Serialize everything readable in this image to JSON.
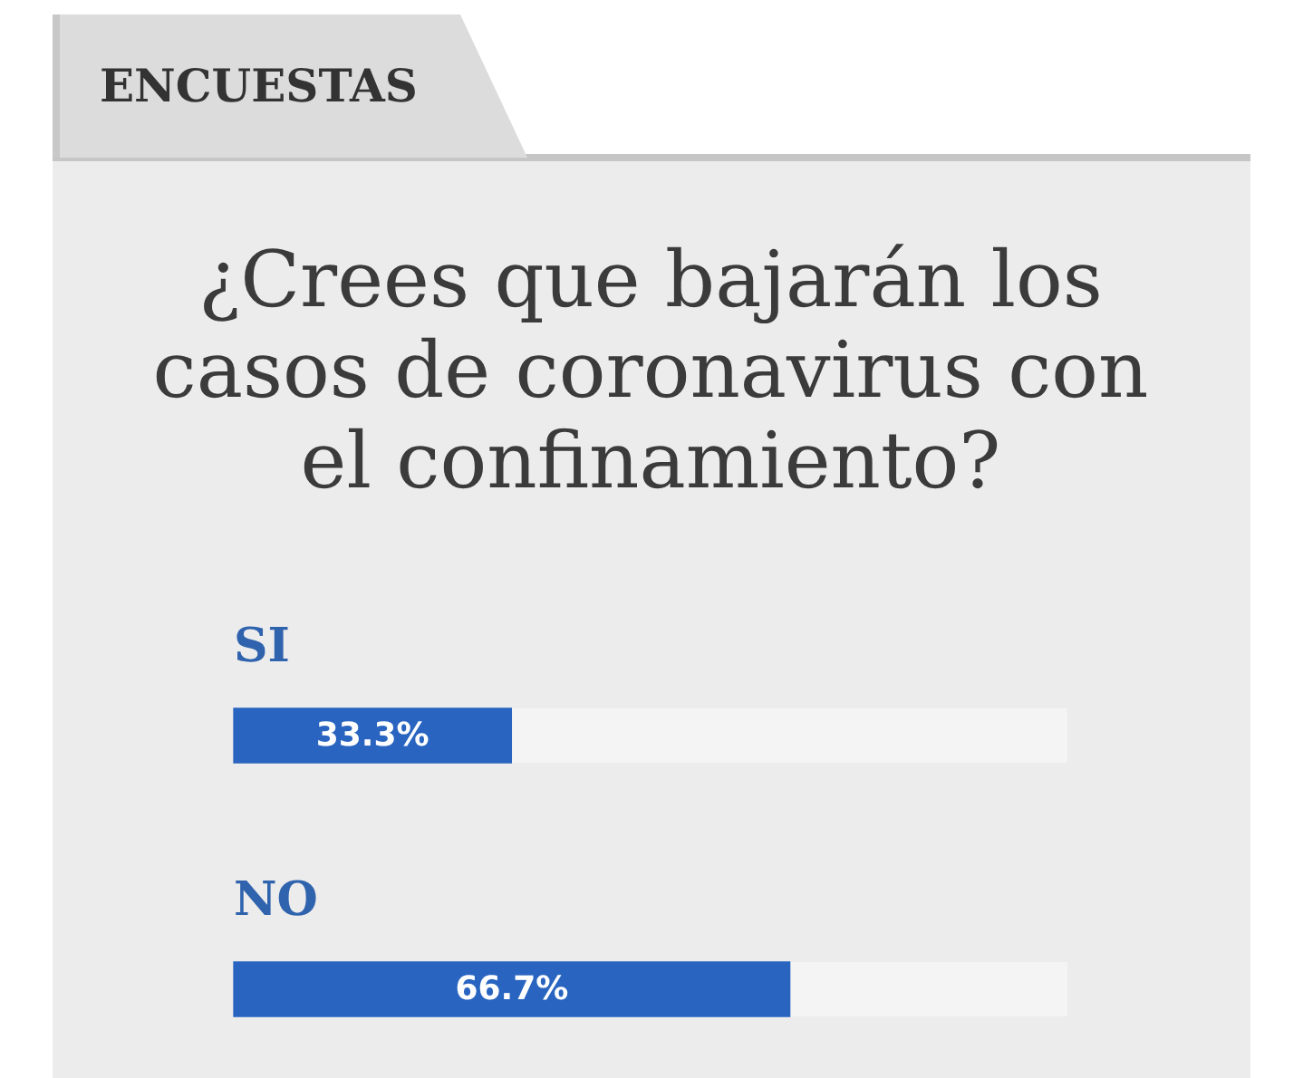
{
  "chart_data": {
    "type": "bar",
    "orientation": "horizontal",
    "title": "¿Crees que bajarán los casos de coronavirus con el confinamiento?",
    "annotations": [
      "ENCUESTAS"
    ],
    "categories": [
      "SI",
      "NO"
    ],
    "values": [
      33.3,
      66.7
    ],
    "value_labels": [
      "33.3%",
      "66.7%"
    ],
    "color": "#2965c0",
    "xlim": [
      0,
      100
    ],
    "tick_labels": "y"
  }
}
